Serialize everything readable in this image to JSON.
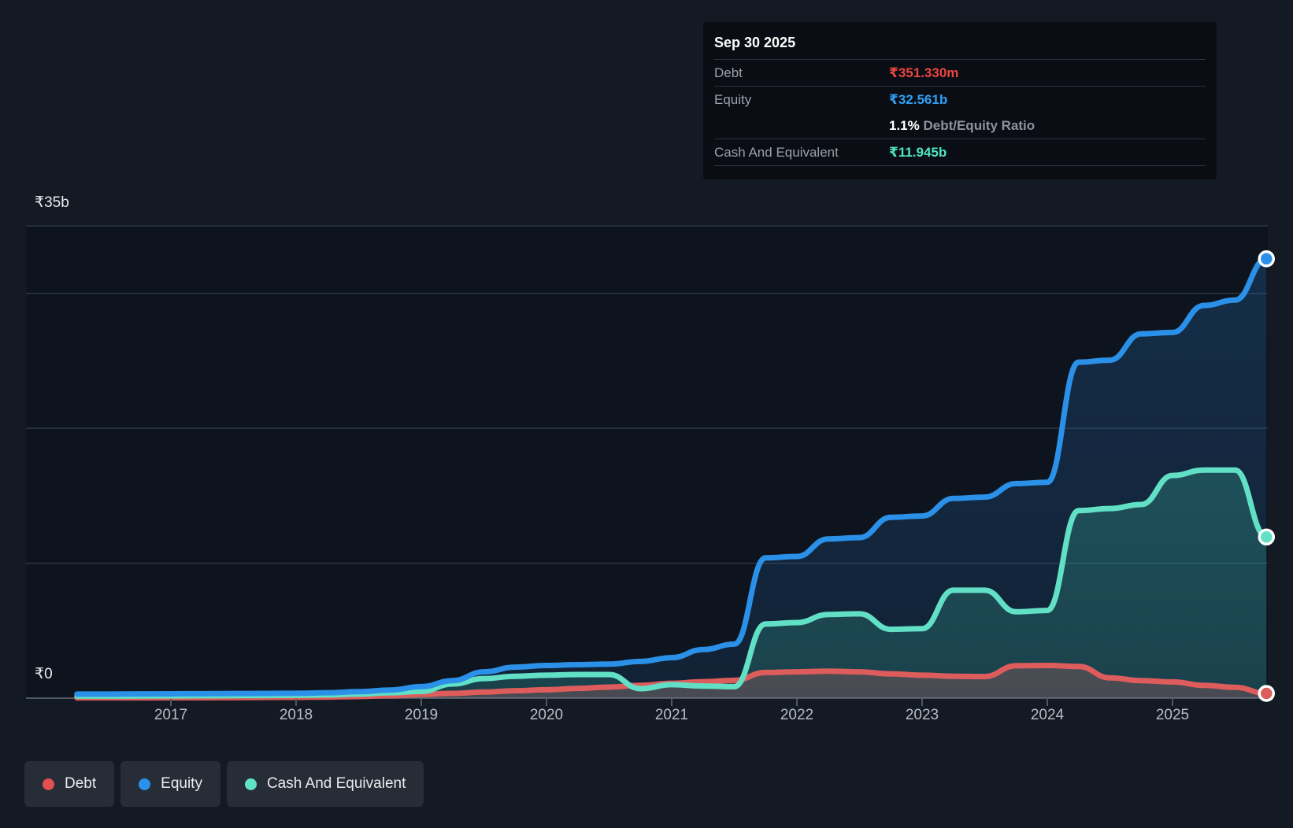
{
  "tooltip": {
    "date": "Sep 30 2025",
    "debt": {
      "label": "Debt",
      "value": "₹351.330m",
      "color": "#e8463f"
    },
    "equity": {
      "label": "Equity",
      "value": "₹32.561b",
      "color": "#2f9ff2"
    },
    "ratio": {
      "value": "1.1%",
      "label": " Debt/Equity Ratio"
    },
    "cash": {
      "label": "Cash And Equivalent",
      "value": "₹11.945b",
      "color": "#4fe3c1"
    }
  },
  "legend": {
    "items": [
      {
        "label": "Debt",
        "color": "#e0504f"
      },
      {
        "label": "Equity",
        "color": "#2b90e8"
      },
      {
        "label": "Cash And Equivalent",
        "color": "#5fe3c4"
      }
    ]
  },
  "chart_data": {
    "type": "area",
    "x": [
      2016.25,
      2016.5,
      2016.75,
      2017,
      2017.25,
      2017.5,
      2017.75,
      2018,
      2018.25,
      2018.5,
      2018.75,
      2019,
      2019.25,
      2019.5,
      2019.75,
      2020,
      2020.25,
      2020.5,
      2020.75,
      2021,
      2021.25,
      2021.5,
      2021.75,
      2022,
      2022.25,
      2022.5,
      2022.75,
      2023,
      2023.25,
      2023.5,
      2023.75,
      2024,
      2024.25,
      2024.5,
      2024.75,
      2025,
      2025.25,
      2025.5,
      2025.75
    ],
    "series": [
      {
        "name": "Equity",
        "color": "#2b90e8",
        "fill": "#2878c8",
        "values": [
          0.3,
          0.3,
          0.31,
          0.32,
          0.33,
          0.34,
          0.35,
          0.36,
          0.4,
          0.48,
          0.6,
          0.85,
          1.3,
          1.95,
          2.3,
          2.42,
          2.48,
          2.52,
          2.72,
          3.0,
          3.6,
          4.0,
          10.4,
          10.5,
          11.8,
          11.9,
          13.4,
          13.5,
          14.8,
          14.9,
          15.9,
          16.0,
          24.9,
          25.05,
          27.0,
          27.1,
          29.1,
          29.5,
          32.561
        ]
      },
      {
        "name": "Cash And Equivalent",
        "color": "#62e0c6",
        "fill": "#3cbea5",
        "values": [
          0.15,
          0.15,
          0.16,
          0.17,
          0.18,
          0.19,
          0.2,
          0.21,
          0.24,
          0.3,
          0.4,
          0.5,
          1.05,
          1.45,
          1.62,
          1.7,
          1.75,
          1.75,
          0.7,
          1.0,
          0.9,
          0.85,
          5.5,
          5.6,
          6.2,
          6.25,
          5.1,
          5.15,
          8.0,
          8.0,
          6.4,
          6.5,
          13.9,
          14.05,
          14.35,
          16.5,
          16.9,
          16.9,
          11.945
        ]
      },
      {
        "name": "Debt",
        "color": "#dd5c5c",
        "fill": "#c86464",
        "values": [
          0.02,
          0.02,
          0.02,
          0.03,
          0.03,
          0.04,
          0.05,
          0.06,
          0.08,
          0.12,
          0.18,
          0.28,
          0.35,
          0.45,
          0.55,
          0.62,
          0.72,
          0.82,
          0.95,
          1.1,
          1.22,
          1.32,
          1.9,
          1.95,
          2.0,
          1.95,
          1.8,
          1.7,
          1.62,
          1.6,
          2.4,
          2.42,
          2.35,
          1.5,
          1.3,
          1.2,
          0.95,
          0.8,
          0.351
        ]
      }
    ],
    "x_ticks": [
      "2017",
      "2018",
      "2019",
      "2020",
      "2021",
      "2022",
      "2023",
      "2024",
      "2025"
    ],
    "y_axis": {
      "top_label": "₹35b",
      "zero_label": "₹0",
      "min": 0,
      "max": 35,
      "gridline_values": [
        35,
        30,
        20,
        10
      ]
    },
    "xlim": [
      2016.25,
      2025.75
    ],
    "ylim": [
      0,
      35
    ],
    "legend_position": "bottom-left",
    "grid": "horizontal"
  }
}
